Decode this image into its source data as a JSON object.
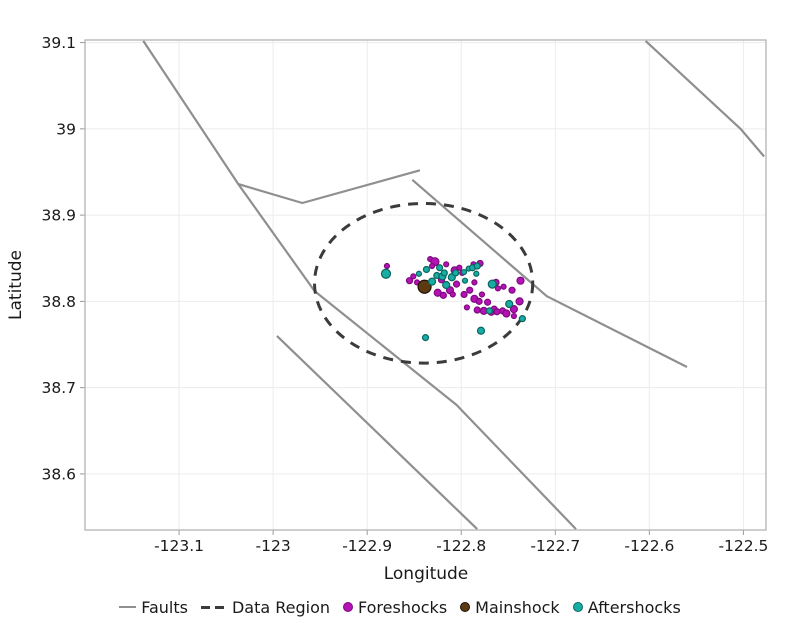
{
  "figure": {
    "background": "#ffffff"
  },
  "chart_data": {
    "type": "scatter",
    "title": "",
    "xlabel": "Longitude",
    "ylabel": "Latitude",
    "xlim": [
      -123.2,
      -122.476
    ],
    "ylim": [
      38.535,
      39.103
    ],
    "xticks": [
      -123.1,
      -123.0,
      -122.9,
      -122.8,
      -122.7,
      -122.6,
      -122.5
    ],
    "xtick_labels": [
      "-123.1",
      "-123",
      "-122.9",
      "-122.8",
      "-122.7",
      "-122.6",
      "-122.5"
    ],
    "yticks": [
      39.1,
      39.0,
      38.9,
      38.8,
      38.7,
      38.6
    ],
    "ytick_labels": [
      "39.1",
      "39",
      "38.9",
      "38.8",
      "38.7",
      "38.6"
    ],
    "grid": true,
    "grid_color": "#ececec",
    "frame_color": "#b3b3b3",
    "text_color": "#1a1a1a",
    "legend_position": "bottom-center",
    "faults": {
      "label": "Faults",
      "color": "#8f8f8f",
      "lines": [
        [
          [
            -123.138,
            39.102
          ],
          [
            -123.037,
            38.936
          ],
          [
            -122.956,
            38.812
          ],
          [
            -122.805,
            38.68
          ],
          [
            -122.678,
            38.536
          ]
        ],
        [
          [
            -123.037,
            38.936
          ],
          [
            -122.969,
            38.914
          ],
          [
            -122.844,
            38.952
          ]
        ],
        [
          [
            -122.852,
            38.941
          ],
          [
            -122.709,
            38.806
          ],
          [
            -122.56,
            38.724
          ]
        ],
        [
          [
            -122.996,
            38.76
          ],
          [
            -122.783,
            38.536
          ]
        ],
        [
          [
            -122.604,
            39.102
          ],
          [
            -122.503,
            39.0
          ],
          [
            -122.478,
            38.968
          ]
        ]
      ]
    },
    "data_region": {
      "label": "Data Region",
      "color": "#3b3b3b",
      "center": [
        -122.84,
        38.821
      ],
      "rx": 0.116,
      "ry": 0.0925
    },
    "series": [
      {
        "name": "Foreshocks",
        "color": "#b412b4",
        "edge": "#7d0b7d",
        "points": [
          [
            -122.879,
            38.841,
            2.5
          ],
          [
            -122.855,
            38.824,
            3
          ],
          [
            -122.851,
            38.829,
            2.5
          ],
          [
            -122.847,
            38.822,
            2.5
          ],
          [
            -122.833,
            38.849,
            2.5
          ],
          [
            -122.828,
            38.846,
            4
          ],
          [
            -122.831,
            38.841,
            2.5
          ],
          [
            -122.821,
            38.825,
            3
          ],
          [
            -122.825,
            38.81,
            3.5
          ],
          [
            -122.819,
            38.807,
            3
          ],
          [
            -122.816,
            38.843,
            2.5
          ],
          [
            -122.812,
            38.813,
            3.5
          ],
          [
            -122.807,
            38.836,
            3.5
          ],
          [
            -122.805,
            38.82,
            3
          ],
          [
            -122.802,
            38.839,
            2.5
          ],
          [
            -122.799,
            38.833,
            2.5
          ],
          [
            -122.797,
            38.808,
            3
          ],
          [
            -122.794,
            38.793,
            2.5
          ],
          [
            -122.791,
            38.813,
            3
          ],
          [
            -122.787,
            38.843,
            2.5
          ],
          [
            -122.786,
            38.822,
            2.5
          ],
          [
            -122.786,
            38.803,
            3.5
          ],
          [
            -122.783,
            38.79,
            3
          ],
          [
            -122.781,
            38.8,
            3
          ],
          [
            -122.78,
            38.844,
            3
          ],
          [
            -122.778,
            38.808,
            2.5
          ],
          [
            -122.776,
            38.789,
            3.5
          ],
          [
            -122.772,
            38.799,
            3
          ],
          [
            -122.768,
            38.788,
            3.5
          ],
          [
            -122.765,
            38.791,
            3
          ],
          [
            -122.763,
            38.822,
            3
          ],
          [
            -122.762,
            38.788,
            3
          ],
          [
            -122.761,
            38.815,
            2.5
          ],
          [
            -122.756,
            38.789,
            3
          ],
          [
            -122.755,
            38.817,
            2.5
          ],
          [
            -122.752,
            38.786,
            3.5
          ],
          [
            -122.746,
            38.813,
            3
          ],
          [
            -122.744,
            38.791,
            3.5
          ],
          [
            -122.744,
            38.783,
            2.5
          ],
          [
            -122.738,
            38.8,
            3.5
          ],
          [
            -122.737,
            38.824,
            3.5
          ],
          [
            -122.809,
            38.808,
            2.5
          ]
        ]
      },
      {
        "name": "Mainshock",
        "color": "#5d3a12",
        "edge": "#1f1106",
        "points": [
          [
            -122.839,
            38.817,
            6.5
          ]
        ]
      },
      {
        "name": "Aftershocks",
        "color": "#18ada4",
        "edge": "#0b665f",
        "points": [
          [
            -122.88,
            38.832,
            4.5
          ],
          [
            -122.845,
            38.832,
            2.5
          ],
          [
            -122.837,
            38.837,
            3
          ],
          [
            -122.831,
            38.823,
            3.5
          ],
          [
            -122.826,
            38.83,
            3
          ],
          [
            -122.823,
            38.839,
            3
          ],
          [
            -122.82,
            38.829,
            3.5
          ],
          [
            -122.818,
            38.833,
            3
          ],
          [
            -122.816,
            38.819,
            3.5
          ],
          [
            -122.81,
            38.828,
            3.5
          ],
          [
            -122.806,
            38.833,
            3
          ],
          [
            -122.797,
            38.834,
            2.5
          ],
          [
            -122.796,
            38.824,
            2.5
          ],
          [
            -122.792,
            38.838,
            2.5
          ],
          [
            -122.788,
            38.839,
            3
          ],
          [
            -122.784,
            38.832,
            2.5
          ],
          [
            -122.783,
            38.841,
            3
          ],
          [
            -122.767,
            38.82,
            4
          ],
          [
            -122.77,
            38.789,
            3
          ],
          [
            -122.749,
            38.797,
            3.5
          ],
          [
            -122.735,
            38.78,
            3
          ],
          [
            -122.779,
            38.766,
            3.5
          ],
          [
            -122.838,
            38.758,
            3
          ]
        ]
      }
    ]
  },
  "legend": {
    "items": [
      {
        "label": "Faults"
      },
      {
        "label": "Data Region"
      },
      {
        "label": "Foreshocks"
      },
      {
        "label": "Mainshock"
      },
      {
        "label": "Aftershocks"
      }
    ]
  }
}
